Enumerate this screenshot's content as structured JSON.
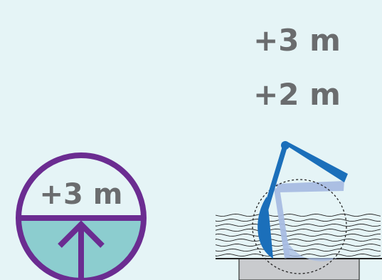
{
  "depth_labels": {
    "first": "+3 m",
    "second": "+2 m"
  },
  "badge": {
    "label": "+3 m",
    "icon": "arrow-up-icon"
  },
  "colors": {
    "background": "#e5f4f6",
    "text_grey": "#6a6c6e",
    "badge_ring": "#6b2c91",
    "badge_water": "#8ccdcf",
    "arm_dark": "#1b6fba",
    "arm_light": "#a8bde3",
    "water_lines": "#222222",
    "base_block": "#c9cbce"
  }
}
